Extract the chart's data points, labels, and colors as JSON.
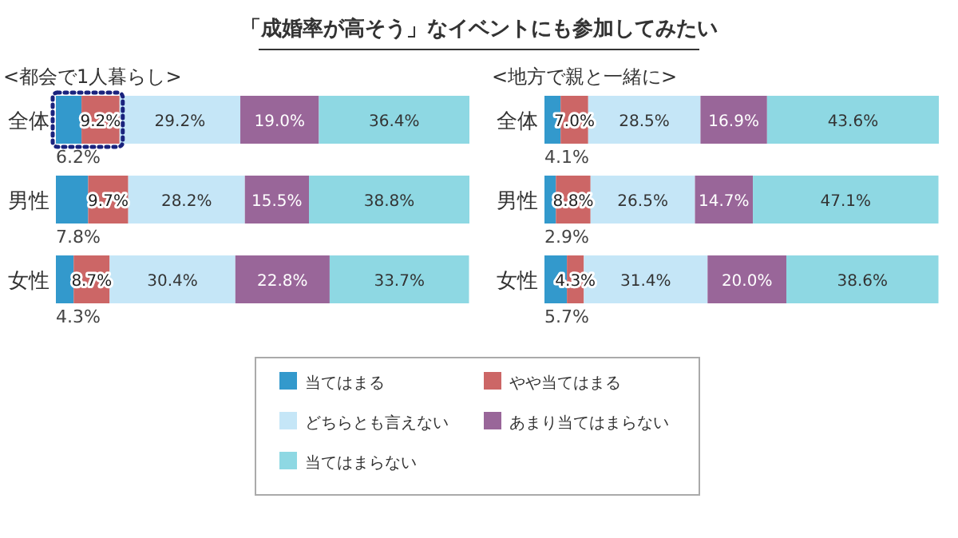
{
  "chart_data": [
    {
      "type": "bar",
      "orientation": "horizontal",
      "stacked": true,
      "title": "「成婚率が高そう」なイベントにも参加してみたい",
      "subtitle": "<都会で1人暮らし>",
      "legend": "bottom",
      "categories": [
        "全体",
        "男性",
        "女性"
      ],
      "series": [
        {
          "name": "当てはまる",
          "color": "#3399cc",
          "values": [
            6.2,
            7.8,
            4.3
          ],
          "value_labels": [
            "6.2%",
            "7.8%",
            "4.3%"
          ]
        },
        {
          "name": "やや当てはまる",
          "color": "#cc6666",
          "values": [
            9.2,
            9.7,
            8.7
          ],
          "value_labels": [
            "9.2%",
            "9.7%",
            "8.7%"
          ]
        },
        {
          "name": "どちらとも言えない",
          "color": "#c5e6f7",
          "values": [
            29.2,
            28.2,
            30.4
          ],
          "value_labels": [
            "29.2%",
            "28.2%",
            "30.4%"
          ]
        },
        {
          "name": "あまり当てはまらない",
          "color": "#996699",
          "values": [
            19.0,
            15.5,
            22.8
          ],
          "value_labels": [
            "19.0%",
            "15.5%",
            "22.8%"
          ]
        },
        {
          "name": "当てはまらない",
          "color": "#8ed8e3",
          "values": [
            36.4,
            38.8,
            33.7
          ],
          "value_labels": [
            "36.4%",
            "38.8%",
            "33.7%"
          ]
        }
      ]
    },
    {
      "type": "bar",
      "orientation": "horizontal",
      "stacked": true,
      "subtitle": "<地方で親と一緒に>",
      "categories": [
        "全体",
        "男性",
        "女性"
      ],
      "series": [
        {
          "color": "#3399cc",
          "values": [
            4.1,
            2.9,
            5.7
          ],
          "value_labels": [
            "4.1%",
            "2.9%",
            "5.7%"
          ]
        },
        {
          "color": "#cc6666",
          "values": [
            7.0,
            8.8,
            4.3
          ],
          "value_labels": [
            "7.0%",
            "8.8%",
            "4.3%"
          ]
        },
        {
          "color": "#c5e6f7",
          "values": [
            28.5,
            26.5,
            31.4
          ],
          "value_labels": [
            "28.5%",
            "26.5%",
            "31.4%"
          ]
        },
        {
          "color": "#996699",
          "values": [
            16.9,
            14.7,
            20.0
          ],
          "value_labels": [
            "16.9%",
            "14.7%",
            "20.0%"
          ]
        },
        {
          "color": "#8ed8e3",
          "values": [
            43.6,
            47.1,
            38.6
          ],
          "value_labels": [
            "43.6%",
            "47.1%",
            "38.6%"
          ]
        }
      ]
    }
  ]
}
